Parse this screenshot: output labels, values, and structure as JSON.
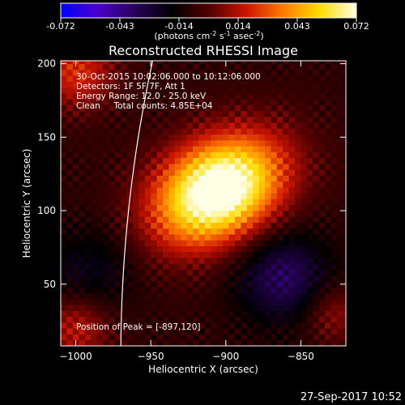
{
  "chart_data": {
    "type": "heatmap",
    "title": "Reconstructed RHESSI Image",
    "xlabel": "Heliocentric X (arcsec)",
    "ylabel": "Heliocentric Y (arcsec)",
    "xlim": [
      -1010,
      -820
    ],
    "ylim": [
      8,
      202
    ],
    "xticks": [
      -1000,
      -950,
      -900,
      -850
    ],
    "yticks": [
      50,
      100,
      150,
      200
    ],
    "colorbar": {
      "min": -0.072,
      "max": 0.072,
      "ticks": [
        "-0.072",
        "-0.043",
        "-0.014",
        "0.014",
        "0.043",
        "0.072"
      ],
      "unit_prefix": "(photons cm",
      "unit_exp1": "-2",
      "unit_mid": " s",
      "unit_exp2": "-1",
      "unit_mid2": " asec",
      "unit_exp3": "-2",
      "unit_suffix": ")",
      "colors": [
        "#0000ff",
        "#4b00c8",
        "#28005a",
        "#000000",
        "#500000",
        "#c81400",
        "#ff7800",
        "#ffdc00",
        "#ffffe6"
      ]
    },
    "annotations": [
      "30-Oct-2015 10:02:06.000 to 10:12:06.000",
      "Detectors: 1F 5F 7F, Att 1",
      "Energy Range: 12.0 - 25.0 keV",
      "Clean     Total counts: 4.85E+04"
    ],
    "peak_label": "Position of Peak = [-897,120]",
    "peak": [
      -897,
      120
    ],
    "limb_color": "#ffffff",
    "timestamp": "27-Sep-2017 10:52"
  }
}
